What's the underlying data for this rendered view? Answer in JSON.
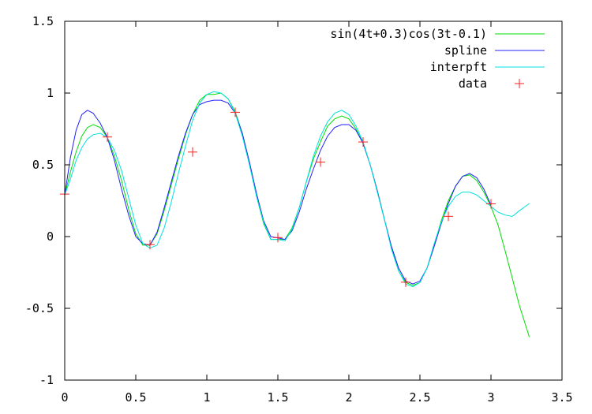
{
  "chart_data": {
    "type": "line",
    "title": "",
    "xlabel": "",
    "ylabel": "",
    "xlim": [
      0,
      3.5
    ],
    "ylim": [
      -1,
      1.5
    ],
    "xticks": [
      0,
      0.5,
      1,
      1.5,
      2,
      2.5,
      3,
      3.5
    ],
    "xtick_labels": [
      "0",
      "0.5",
      "1",
      "1.5",
      "2",
      "2.5",
      "3",
      "3.5"
    ],
    "yticks": [
      -1,
      -0.5,
      0,
      0.5,
      1,
      1.5
    ],
    "ytick_labels": [
      "-1",
      "-0.5",
      "0",
      "0.5",
      "1",
      "1.5"
    ],
    "grid": false,
    "legend_position": "top-right",
    "series": [
      {
        "name": "sin(4t+0.3)cos(3t-0.1)",
        "kind": "line",
        "color": "#00dd00",
        "x": [
          0,
          0.04,
          0.08,
          0.12,
          0.16,
          0.2,
          0.25,
          0.3,
          0.35,
          0.4,
          0.45,
          0.5,
          0.55,
          0.6,
          0.65,
          0.7,
          0.75,
          0.8,
          0.85,
          0.9,
          0.95,
          1.0,
          1.05,
          1.1,
          1.15,
          1.2,
          1.25,
          1.3,
          1.35,
          1.4,
          1.45,
          1.5,
          1.55,
          1.6,
          1.65,
          1.7,
          1.75,
          1.8,
          1.85,
          1.9,
          1.95,
          2.0,
          2.05,
          2.1,
          2.15,
          2.2,
          2.25,
          2.3,
          2.35,
          2.4,
          2.45,
          2.5,
          2.55,
          2.6,
          2.65,
          2.7,
          2.75,
          2.8,
          2.85,
          2.9,
          2.95,
          3.0,
          3.05,
          3.1,
          3.15,
          3.2,
          3.27
        ],
        "y": [
          0.29,
          0.45,
          0.59,
          0.7,
          0.76,
          0.78,
          0.76,
          0.69,
          0.56,
          0.39,
          0.19,
          0.02,
          -0.06,
          -0.06,
          0.02,
          0.18,
          0.36,
          0.54,
          0.71,
          0.85,
          0.95,
          0.99,
          0.99,
          1.0,
          0.96,
          0.87,
          0.72,
          0.51,
          0.28,
          0.09,
          -0.02,
          -0.02,
          -0.02,
          0.06,
          0.2,
          0.38,
          0.54,
          0.66,
          0.77,
          0.82,
          0.84,
          0.82,
          0.75,
          0.65,
          0.5,
          0.32,
          0.12,
          -0.08,
          -0.24,
          -0.32,
          -0.34,
          -0.32,
          -0.22,
          -0.06,
          0.11,
          0.25,
          0.35,
          0.42,
          0.43,
          0.39,
          0.31,
          0.21,
          0.08,
          -0.1,
          -0.29,
          -0.48,
          -0.7
        ]
      },
      {
        "name": "spline",
        "kind": "line",
        "color": "#2020ff",
        "x": [
          0,
          0.04,
          0.08,
          0.12,
          0.16,
          0.2,
          0.25,
          0.3,
          0.35,
          0.4,
          0.45,
          0.5,
          0.55,
          0.6,
          0.65,
          0.7,
          0.75,
          0.8,
          0.85,
          0.9,
          0.95,
          1.0,
          1.05,
          1.1,
          1.15,
          1.2,
          1.25,
          1.3,
          1.35,
          1.4,
          1.45,
          1.5,
          1.55,
          1.6,
          1.65,
          1.7,
          1.75,
          1.8,
          1.85,
          1.9,
          1.95,
          2.0,
          2.05,
          2.1,
          2.15,
          2.2,
          2.25,
          2.3,
          2.35,
          2.4,
          2.45,
          2.5,
          2.55,
          2.6,
          2.65,
          2.7,
          2.75,
          2.8,
          2.85,
          2.9,
          2.95,
          3.0
        ],
        "y": [
          0.29,
          0.55,
          0.74,
          0.85,
          0.88,
          0.86,
          0.79,
          0.69,
          0.53,
          0.33,
          0.15,
          0.0,
          -0.05,
          -0.06,
          0.03,
          0.2,
          0.38,
          0.56,
          0.72,
          0.85,
          0.92,
          0.94,
          0.95,
          0.95,
          0.93,
          0.86,
          0.72,
          0.52,
          0.3,
          0.11,
          0.0,
          -0.01,
          -0.02,
          0.04,
          0.17,
          0.33,
          0.47,
          0.6,
          0.7,
          0.76,
          0.78,
          0.78,
          0.74,
          0.65,
          0.5,
          0.32,
          0.12,
          -0.07,
          -0.22,
          -0.31,
          -0.33,
          -0.31,
          -0.22,
          -0.07,
          0.09,
          0.23,
          0.35,
          0.42,
          0.44,
          0.41,
          0.33,
          0.22
        ]
      },
      {
        "name": "interpft",
        "kind": "line",
        "color": "#00e0e0",
        "x": [
          0,
          0.04,
          0.08,
          0.12,
          0.16,
          0.2,
          0.25,
          0.3,
          0.35,
          0.4,
          0.45,
          0.5,
          0.55,
          0.6,
          0.65,
          0.7,
          0.75,
          0.8,
          0.85,
          0.9,
          0.95,
          1.0,
          1.05,
          1.1,
          1.15,
          1.2,
          1.25,
          1.3,
          1.35,
          1.4,
          1.45,
          1.5,
          1.55,
          1.6,
          1.65,
          1.7,
          1.75,
          1.8,
          1.85,
          1.9,
          1.95,
          2.0,
          2.05,
          2.1,
          2.15,
          2.2,
          2.25,
          2.3,
          2.35,
          2.4,
          2.45,
          2.5,
          2.55,
          2.6,
          2.65,
          2.7,
          2.75,
          2.8,
          2.85,
          2.9,
          2.95,
          3.0,
          3.05,
          3.1,
          3.15,
          3.2,
          3.27
        ],
        "y": [
          0.29,
          0.4,
          0.53,
          0.62,
          0.68,
          0.71,
          0.72,
          0.69,
          0.6,
          0.46,
          0.27,
          0.08,
          -0.05,
          -0.08,
          -0.06,
          0.06,
          0.24,
          0.44,
          0.63,
          0.81,
          0.93,
          0.99,
          1.01,
          1.0,
          0.96,
          0.86,
          0.7,
          0.5,
          0.28,
          0.1,
          -0.02,
          -0.02,
          -0.03,
          0.05,
          0.2,
          0.38,
          0.56,
          0.7,
          0.8,
          0.86,
          0.88,
          0.85,
          0.77,
          0.66,
          0.5,
          0.31,
          0.12,
          -0.09,
          -0.24,
          -0.33,
          -0.35,
          -0.32,
          -0.22,
          -0.05,
          0.1,
          0.21,
          0.28,
          0.31,
          0.31,
          0.29,
          0.25,
          0.21,
          0.17,
          0.15,
          0.14,
          0.18,
          0.23
        ]
      },
      {
        "name": "data",
        "kind": "marker",
        "marker": "plus",
        "color": "#ff2020",
        "x": [
          0,
          0.3,
          0.6,
          0.9,
          1.2,
          1.5,
          1.8,
          2.1,
          2.4,
          2.7,
          3.0
        ],
        "y": [
          0.296,
          0.694,
          -0.056,
          0.589,
          0.866,
          -0.007,
          0.519,
          0.659,
          -0.318,
          0.141,
          0.228
        ]
      }
    ]
  }
}
